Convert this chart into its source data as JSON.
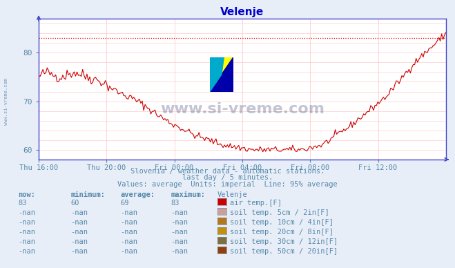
{
  "title": "Velenje",
  "title_color": "#0000cc",
  "bg_color": "#e8eef8",
  "plot_bg_color": "#ffffff",
  "grid_color": "#ffcccc",
  "axis_color": "#4444cc",
  "text_color": "#5588aa",
  "watermark_text": "www.si-vreme.com",
  "watermark_color": "#223366",
  "side_text": "www.si-vreme.com",
  "ylim": [
    58,
    87
  ],
  "yticks": [
    60,
    70,
    80
  ],
  "xlabel_ticks": [
    "Thu 16:00",
    "Thu 20:00",
    "Fri 00:00",
    "Fri 04:00",
    "Fri 08:00",
    "Fri 12:00"
  ],
  "avg_line_value": 83,
  "avg_line_color": "#dd0000",
  "line_color": "#cc0000",
  "subtitle1": "Slovenia / weather data - automatic stations.",
  "subtitle2": "last day / 5 minutes.",
  "subtitle3": "Values: average  Units: imperial  Line: 95% average",
  "legend_headers": [
    "now:",
    "minimum:",
    "average:",
    "maximum:",
    "Velenje"
  ],
  "legend_rows": [
    {
      "now": "83",
      "min": "60",
      "avg": "69",
      "max": "83",
      "color": "#cc0000",
      "label": "air temp.[F]"
    },
    {
      "now": "-nan",
      "min": "-nan",
      "avg": "-nan",
      "max": "-nan",
      "color": "#c8a0a0",
      "label": "soil temp. 5cm / 2in[F]"
    },
    {
      "now": "-nan",
      "min": "-nan",
      "avg": "-nan",
      "max": "-nan",
      "color": "#b07820",
      "label": "soil temp. 10cm / 4in[F]"
    },
    {
      "now": "-nan",
      "min": "-nan",
      "avg": "-nan",
      "max": "-nan",
      "color": "#c09010",
      "label": "soil temp. 20cm / 8in[F]"
    },
    {
      "now": "-nan",
      "min": "-nan",
      "avg": "-nan",
      "max": "-nan",
      "color": "#7a7040",
      "label": "soil temp. 30cm / 12in[F]"
    },
    {
      "now": "-nan",
      "min": "-nan",
      "avg": "-nan",
      "max": "-nan",
      "color": "#904010",
      "label": "soil temp. 50cm / 20in[F]"
    }
  ],
  "num_points": 288
}
